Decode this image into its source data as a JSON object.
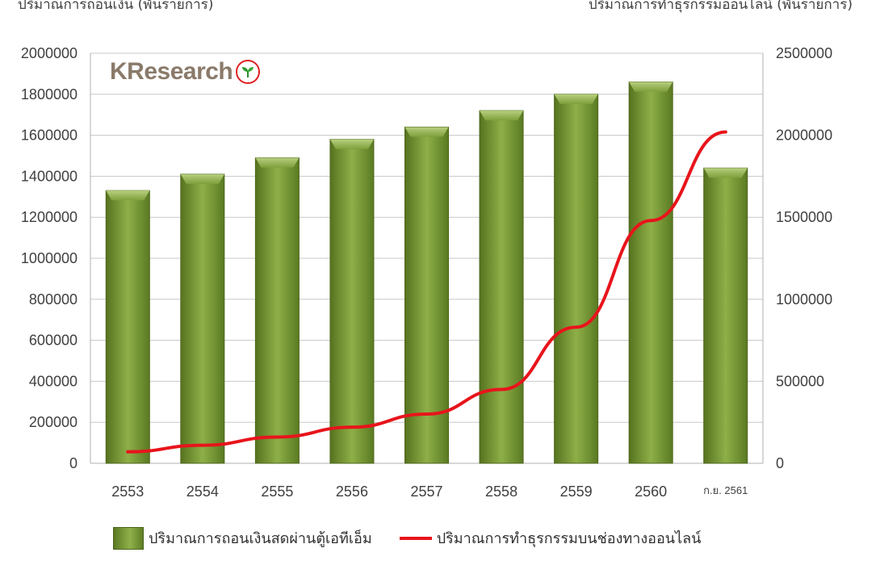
{
  "axis_titles": {
    "left": "ปริมาณการถอนเงิน (พันรายการ)",
    "right": "ปริมาณการทำธุรกรรมออนไลน์ (พันรายการ)"
  },
  "logo": {
    "text": "KResearch"
  },
  "colors": {
    "bar": "#76963a",
    "line": "#e8141b"
  },
  "legend": {
    "bar_label": "ปริมาณการถอนเงินสดผ่านตู้เอทีเอ็ม",
    "line_label": "ปริมาณการทำธุรกรรมบนช่องทางออนไลน์"
  },
  "chart_data": {
    "type": "bar",
    "categories": [
      "2553",
      "2554",
      "2555",
      "2556",
      "2557",
      "2558",
      "2559",
      "2560",
      "ก.ย. 2561"
    ],
    "series": [
      {
        "name": "ปริมาณการถอนเงินสดผ่านตู้เอทีเอ็ม",
        "type": "bar",
        "axis": "left",
        "values": [
          1330000,
          1410000,
          1490000,
          1580000,
          1640000,
          1720000,
          1800000,
          1860000,
          1440000
        ]
      },
      {
        "name": "ปริมาณการทำธุรกรรมบนช่องทางออนไลน์",
        "type": "line",
        "axis": "right",
        "values": [
          70000,
          110000,
          160000,
          220000,
          300000,
          450000,
          830000,
          1480000,
          2020000
        ]
      }
    ],
    "ylim_left": [
      0,
      2000000
    ],
    "yticks_left": [
      "2000000",
      "1800000",
      "1600000",
      "1400000",
      "1200000",
      "1000000",
      "800000",
      "600000",
      "400000",
      "200000",
      "0"
    ],
    "ylim_right": [
      0,
      2500000
    ],
    "yticks_right": [
      "2500000",
      "2000000",
      "1500000",
      "1000000",
      "500000",
      "0"
    ],
    "grid": true,
    "legend_position": "bottom"
  }
}
